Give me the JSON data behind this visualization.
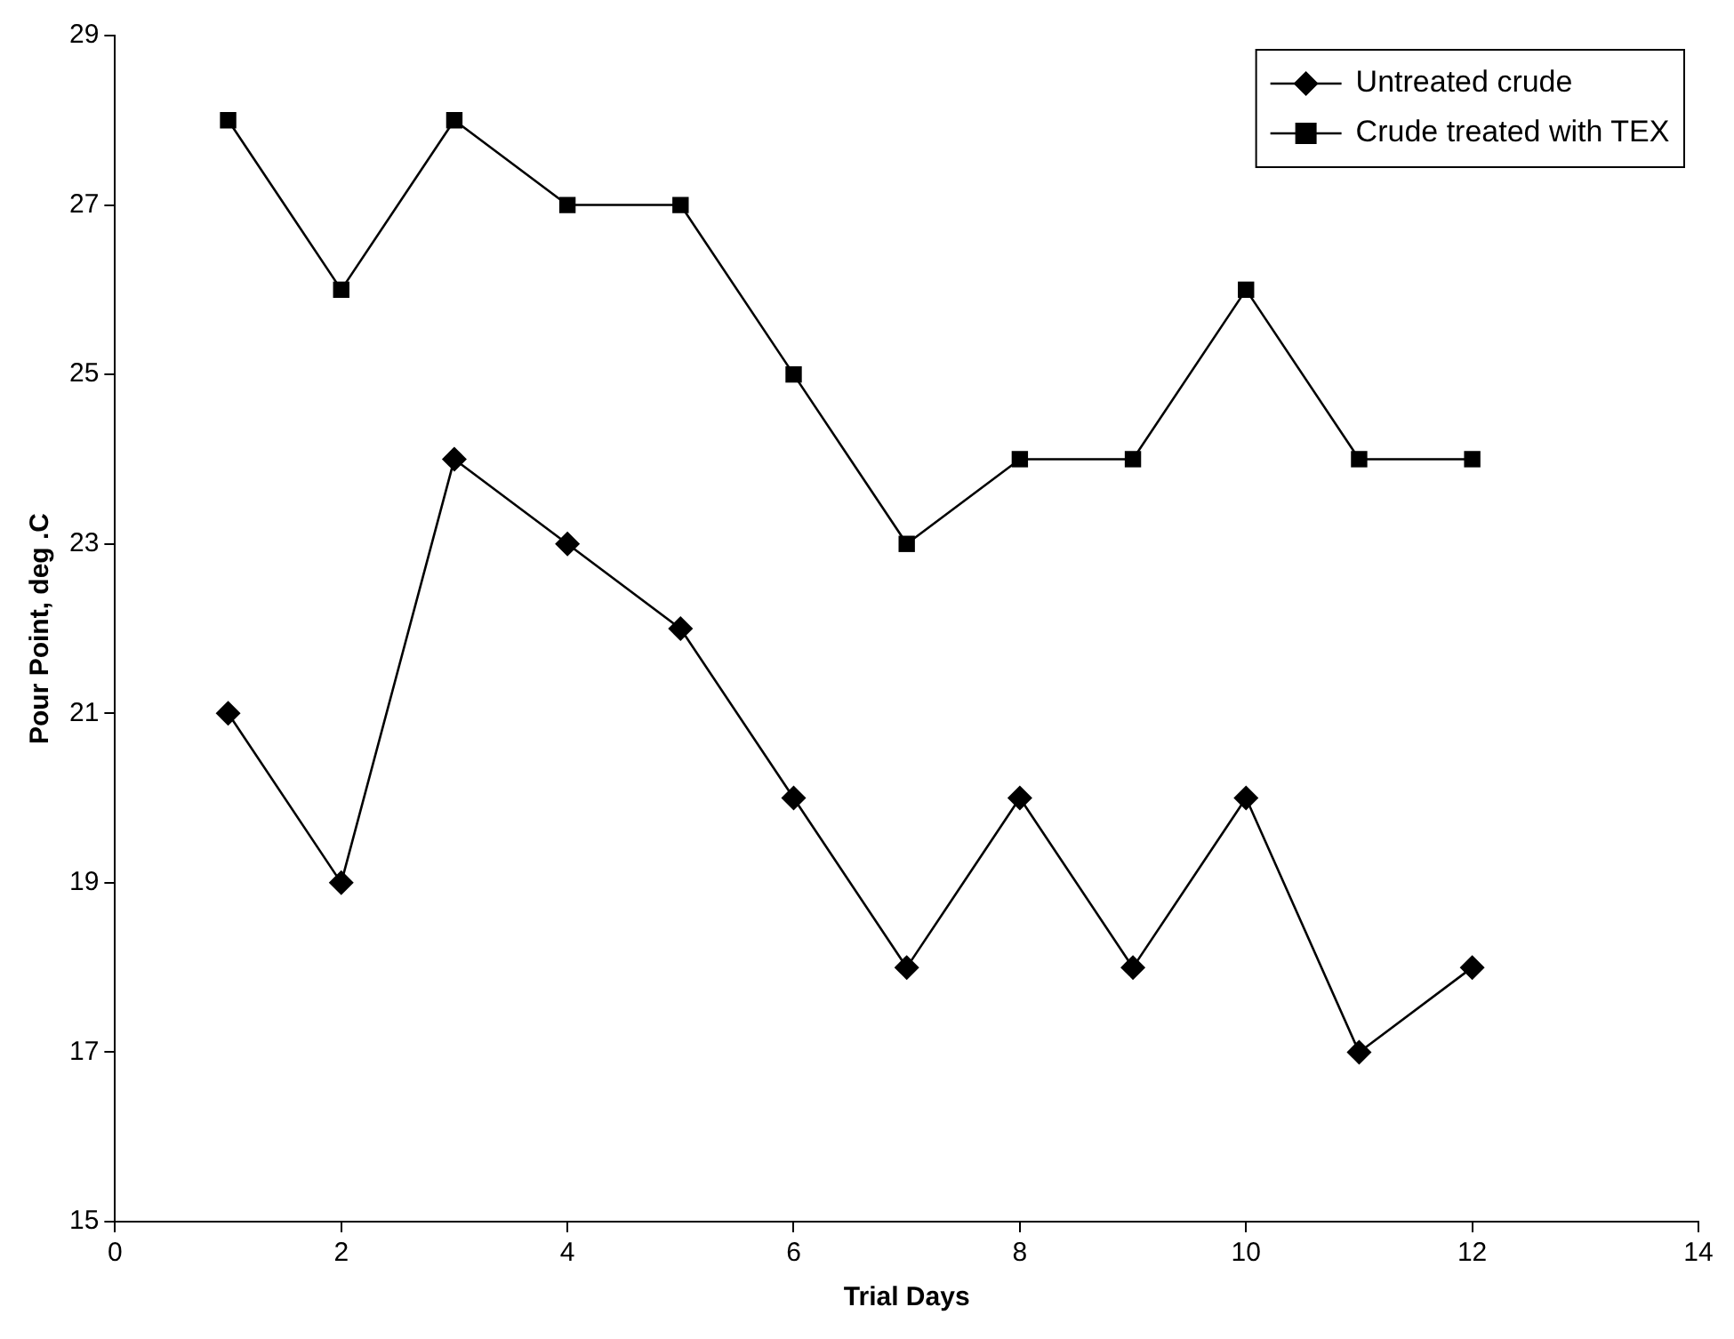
{
  "chart_data": {
    "type": "line",
    "xlabel": "Trial Days",
    "ylabel": "Pour Point, deg .C",
    "x": [
      1,
      2,
      3,
      4,
      5,
      6,
      7,
      8,
      9,
      10,
      11,
      12
    ],
    "series": [
      {
        "name": "Untreated crude",
        "color": "#000000",
        "marker": "diamond",
        "values": [
          21,
          19,
          24,
          23,
          22,
          20,
          18,
          20,
          18,
          20,
          17,
          18
        ]
      },
      {
        "name": "Crude treated with TEX",
        "color": "#000000",
        "marker": "square",
        "values": [
          28,
          26,
          28,
          27,
          27,
          25,
          23,
          24,
          24,
          26,
          24,
          24
        ]
      }
    ],
    "xlim": [
      0,
      14
    ],
    "xticks": [
      0,
      2,
      4,
      6,
      8,
      10,
      12,
      14
    ],
    "ylim": [
      15,
      29
    ],
    "yticks": [
      15,
      17,
      19,
      21,
      23,
      25,
      27,
      29
    ],
    "grid": false,
    "legend": "top right",
    "line_style": "solid"
  }
}
